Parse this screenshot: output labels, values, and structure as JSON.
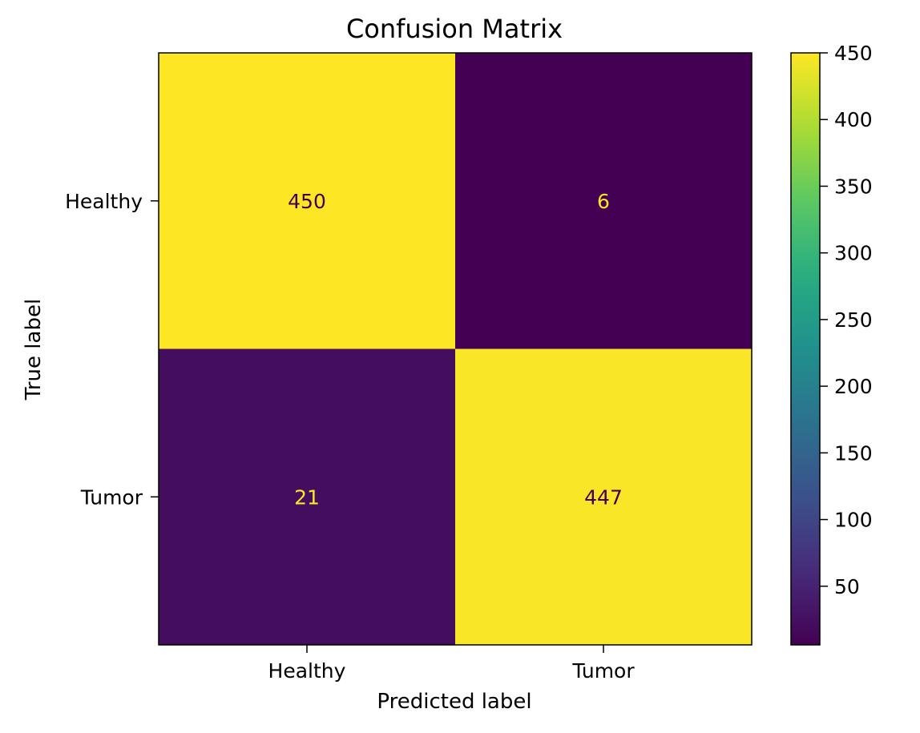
{
  "chart_data": {
    "type": "heatmap",
    "title": "Confusion Matrix",
    "xlabel": "Predicted label",
    "ylabel": "True label",
    "x_categories": [
      "Healthy",
      "Tumor"
    ],
    "y_categories": [
      "Healthy",
      "Tumor"
    ],
    "values": [
      [
        450,
        6
      ],
      [
        21,
        447
      ]
    ],
    "colormap": "viridis",
    "colorbar": {
      "min": 6,
      "max": 450,
      "ticks": [
        50,
        100,
        150,
        200,
        250,
        300,
        350,
        400,
        450
      ]
    },
    "text_colors": {
      "on_light": "#440154",
      "on_dark": "#fde725"
    }
  }
}
